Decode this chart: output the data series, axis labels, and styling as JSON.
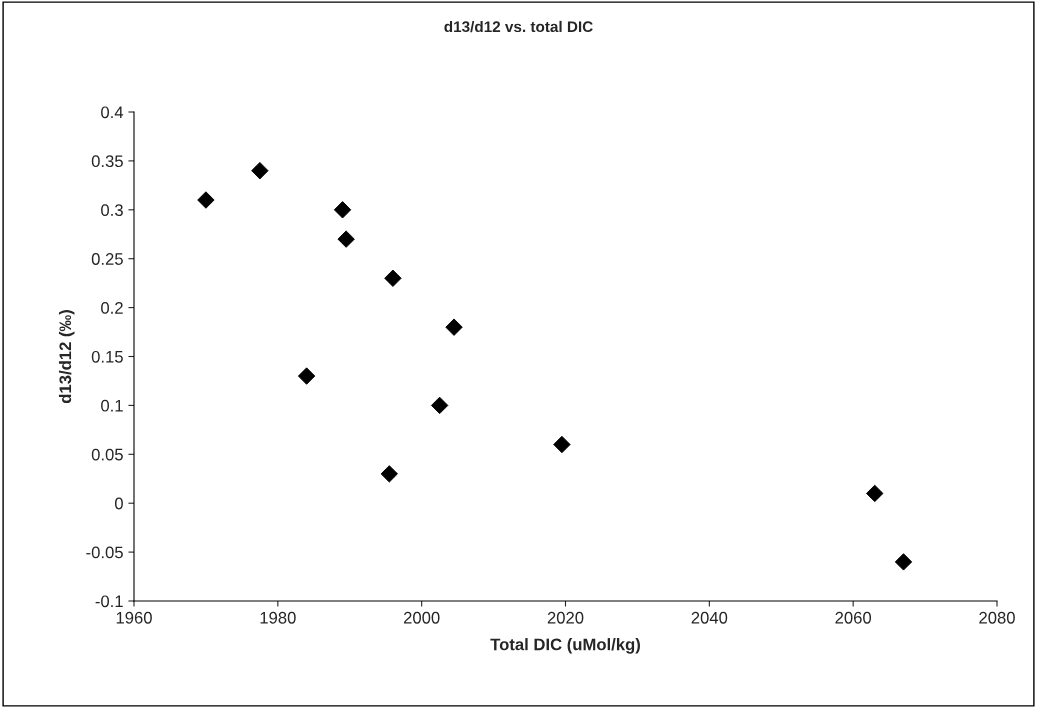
{
  "chart_data": {
    "type": "scatter",
    "title": "d13/d12 vs. total DIC",
    "xlabel": "Total DIC (uMol/kg)",
    "ylabel": "d13/d12 (‰)",
    "x": [
      1970,
      1977.5,
      1989,
      1989.5,
      1996,
      2004.5,
      1984,
      2002.5,
      1995.5,
      2019.5,
      2063,
      2067
    ],
    "values": [
      0.31,
      0.34,
      0.3,
      0.27,
      0.23,
      0.18,
      0.13,
      0.1,
      0.03,
      0.06,
      0.01,
      -0.06
    ],
    "color": "#000000",
    "marker": "diamond",
    "xlim": [
      1960,
      2080
    ],
    "xticks": [
      1960,
      1980,
      2000,
      2020,
      2040,
      2060,
      2080
    ],
    "ylim": [
      -0.1,
      0.4
    ],
    "yticks": [
      -0.1,
      -0.05,
      0,
      0.05,
      0.1,
      0.15,
      0.2,
      0.25,
      0.3,
      0.35,
      0.4
    ],
    "grid": false,
    "legend": false
  }
}
